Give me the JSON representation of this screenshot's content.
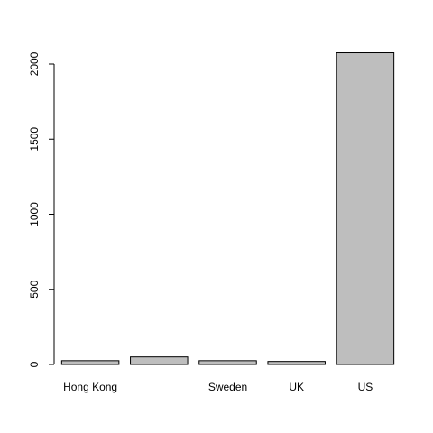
{
  "chart_data": {
    "type": "bar",
    "categories": [
      "Hong Kong",
      "",
      "Sweden",
      "UK",
      "US"
    ],
    "values": [
      25,
      50,
      25,
      20,
      2075
    ],
    "ylim": [
      0,
      2100
    ],
    "y_ticks": [
      0,
      500,
      1000,
      1500,
      2000
    ],
    "y_tick_labels": [
      "0",
      "500",
      "1000",
      "1500",
      "2000"
    ],
    "title": "",
    "xlabel": "",
    "ylabel": "",
    "grid": false,
    "colors": {
      "bar_fill": "#bebebe",
      "bar_stroke": "#000000",
      "axis": "#000000",
      "text": "#000000",
      "background": "#ffffff"
    }
  }
}
